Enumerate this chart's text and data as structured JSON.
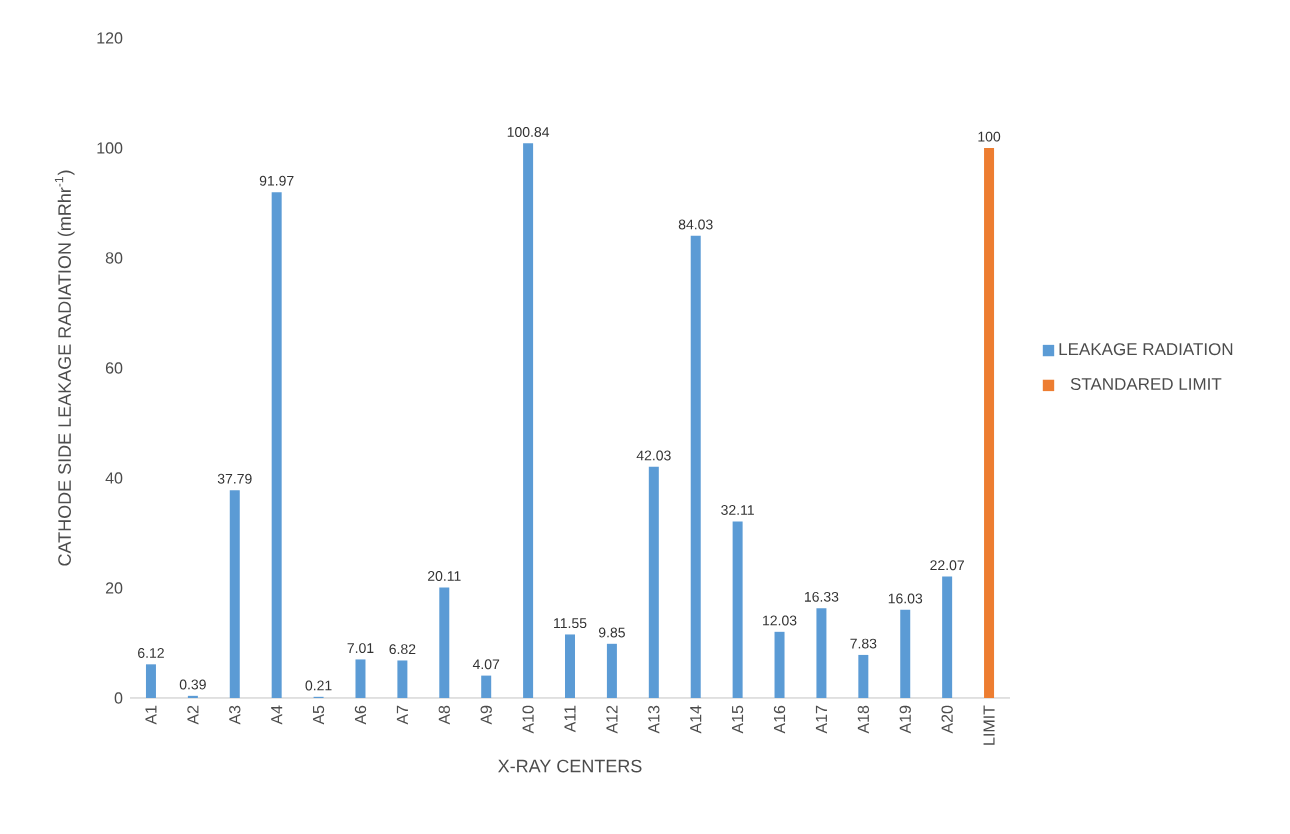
{
  "chart_data": {
    "type": "bar",
    "xlabel": "X-RAY  CENTERS",
    "ylabel": "CATHODE SIDE LEAKAGE RADIATION (mRhr$^{-1}$)",
    "categories": [
      "A1",
      "A2",
      "A3",
      "A4",
      "A5",
      "A6",
      "A7",
      "A8",
      "A9",
      "A10",
      "A11",
      "A12",
      "A13",
      "A14",
      "A15",
      "A16",
      "A17",
      "A18",
      "A19",
      "A20",
      "LIMIT"
    ],
    "series": [
      {
        "name": "LEAKAGE RADIATION",
        "color": "#5b9bd5",
        "values": [
          6.12,
          0.39,
          37.79,
          91.97,
          0.21,
          7.01,
          6.82,
          20.11,
          4.07,
          100.84,
          11.55,
          9.85,
          42.03,
          84.03,
          32.11,
          12.03,
          16.33,
          7.83,
          16.03,
          22.07,
          null
        ]
      },
      {
        "name": "STANDARED LIMIT",
        "color": "#ed7d31",
        "values": [
          null,
          null,
          null,
          null,
          null,
          null,
          null,
          null,
          null,
          null,
          null,
          null,
          null,
          null,
          null,
          null,
          null,
          null,
          null,
          null,
          100
        ]
      }
    ],
    "ylim": [
      0,
      120
    ],
    "yticks": [
      0,
      20,
      40,
      60,
      80,
      100,
      120
    ],
    "data_labels": true,
    "legend": "right",
    "grid": false
  }
}
